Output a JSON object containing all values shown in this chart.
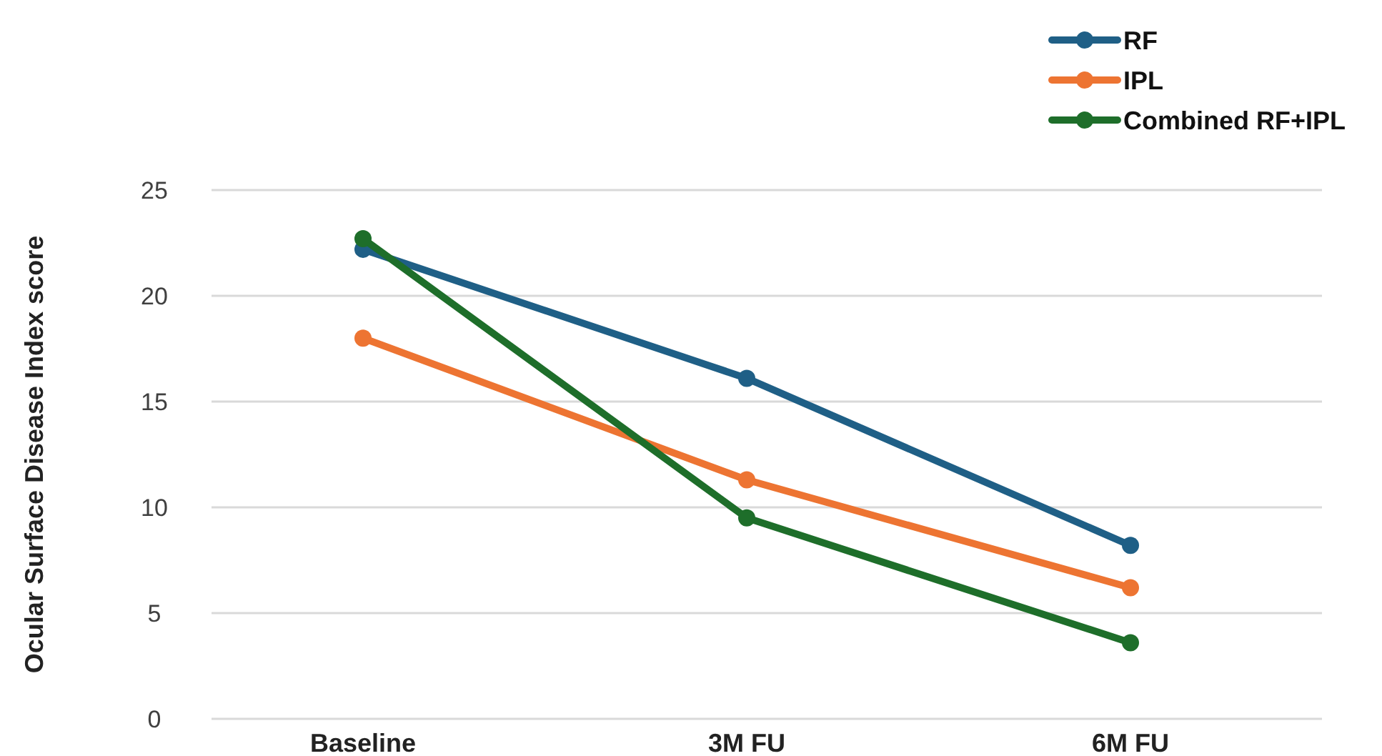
{
  "chart_data": {
    "type": "line",
    "ylabel": "Ocular Surface Disease Index score",
    "categories": [
      "Baseline",
      "3M FU",
      "6M FU"
    ],
    "series": [
      {
        "name": "RF",
        "color": "#1f5f86",
        "values": [
          22.2,
          16.1,
          8.2
        ]
      },
      {
        "name": "IPL",
        "color": "#ed7432",
        "values": [
          18.0,
          11.3,
          6.2
        ]
      },
      {
        "name": "Combined RF+IPL",
        "color": "#1e6e2a",
        "values": [
          22.7,
          9.5,
          3.6
        ]
      }
    ],
    "ylim": [
      0,
      25
    ],
    "yticks": [
      0,
      5,
      10,
      15,
      20,
      25
    ],
    "grid": "y",
    "legend": "top right",
    "marker": "circle",
    "line_style": "solid"
  }
}
